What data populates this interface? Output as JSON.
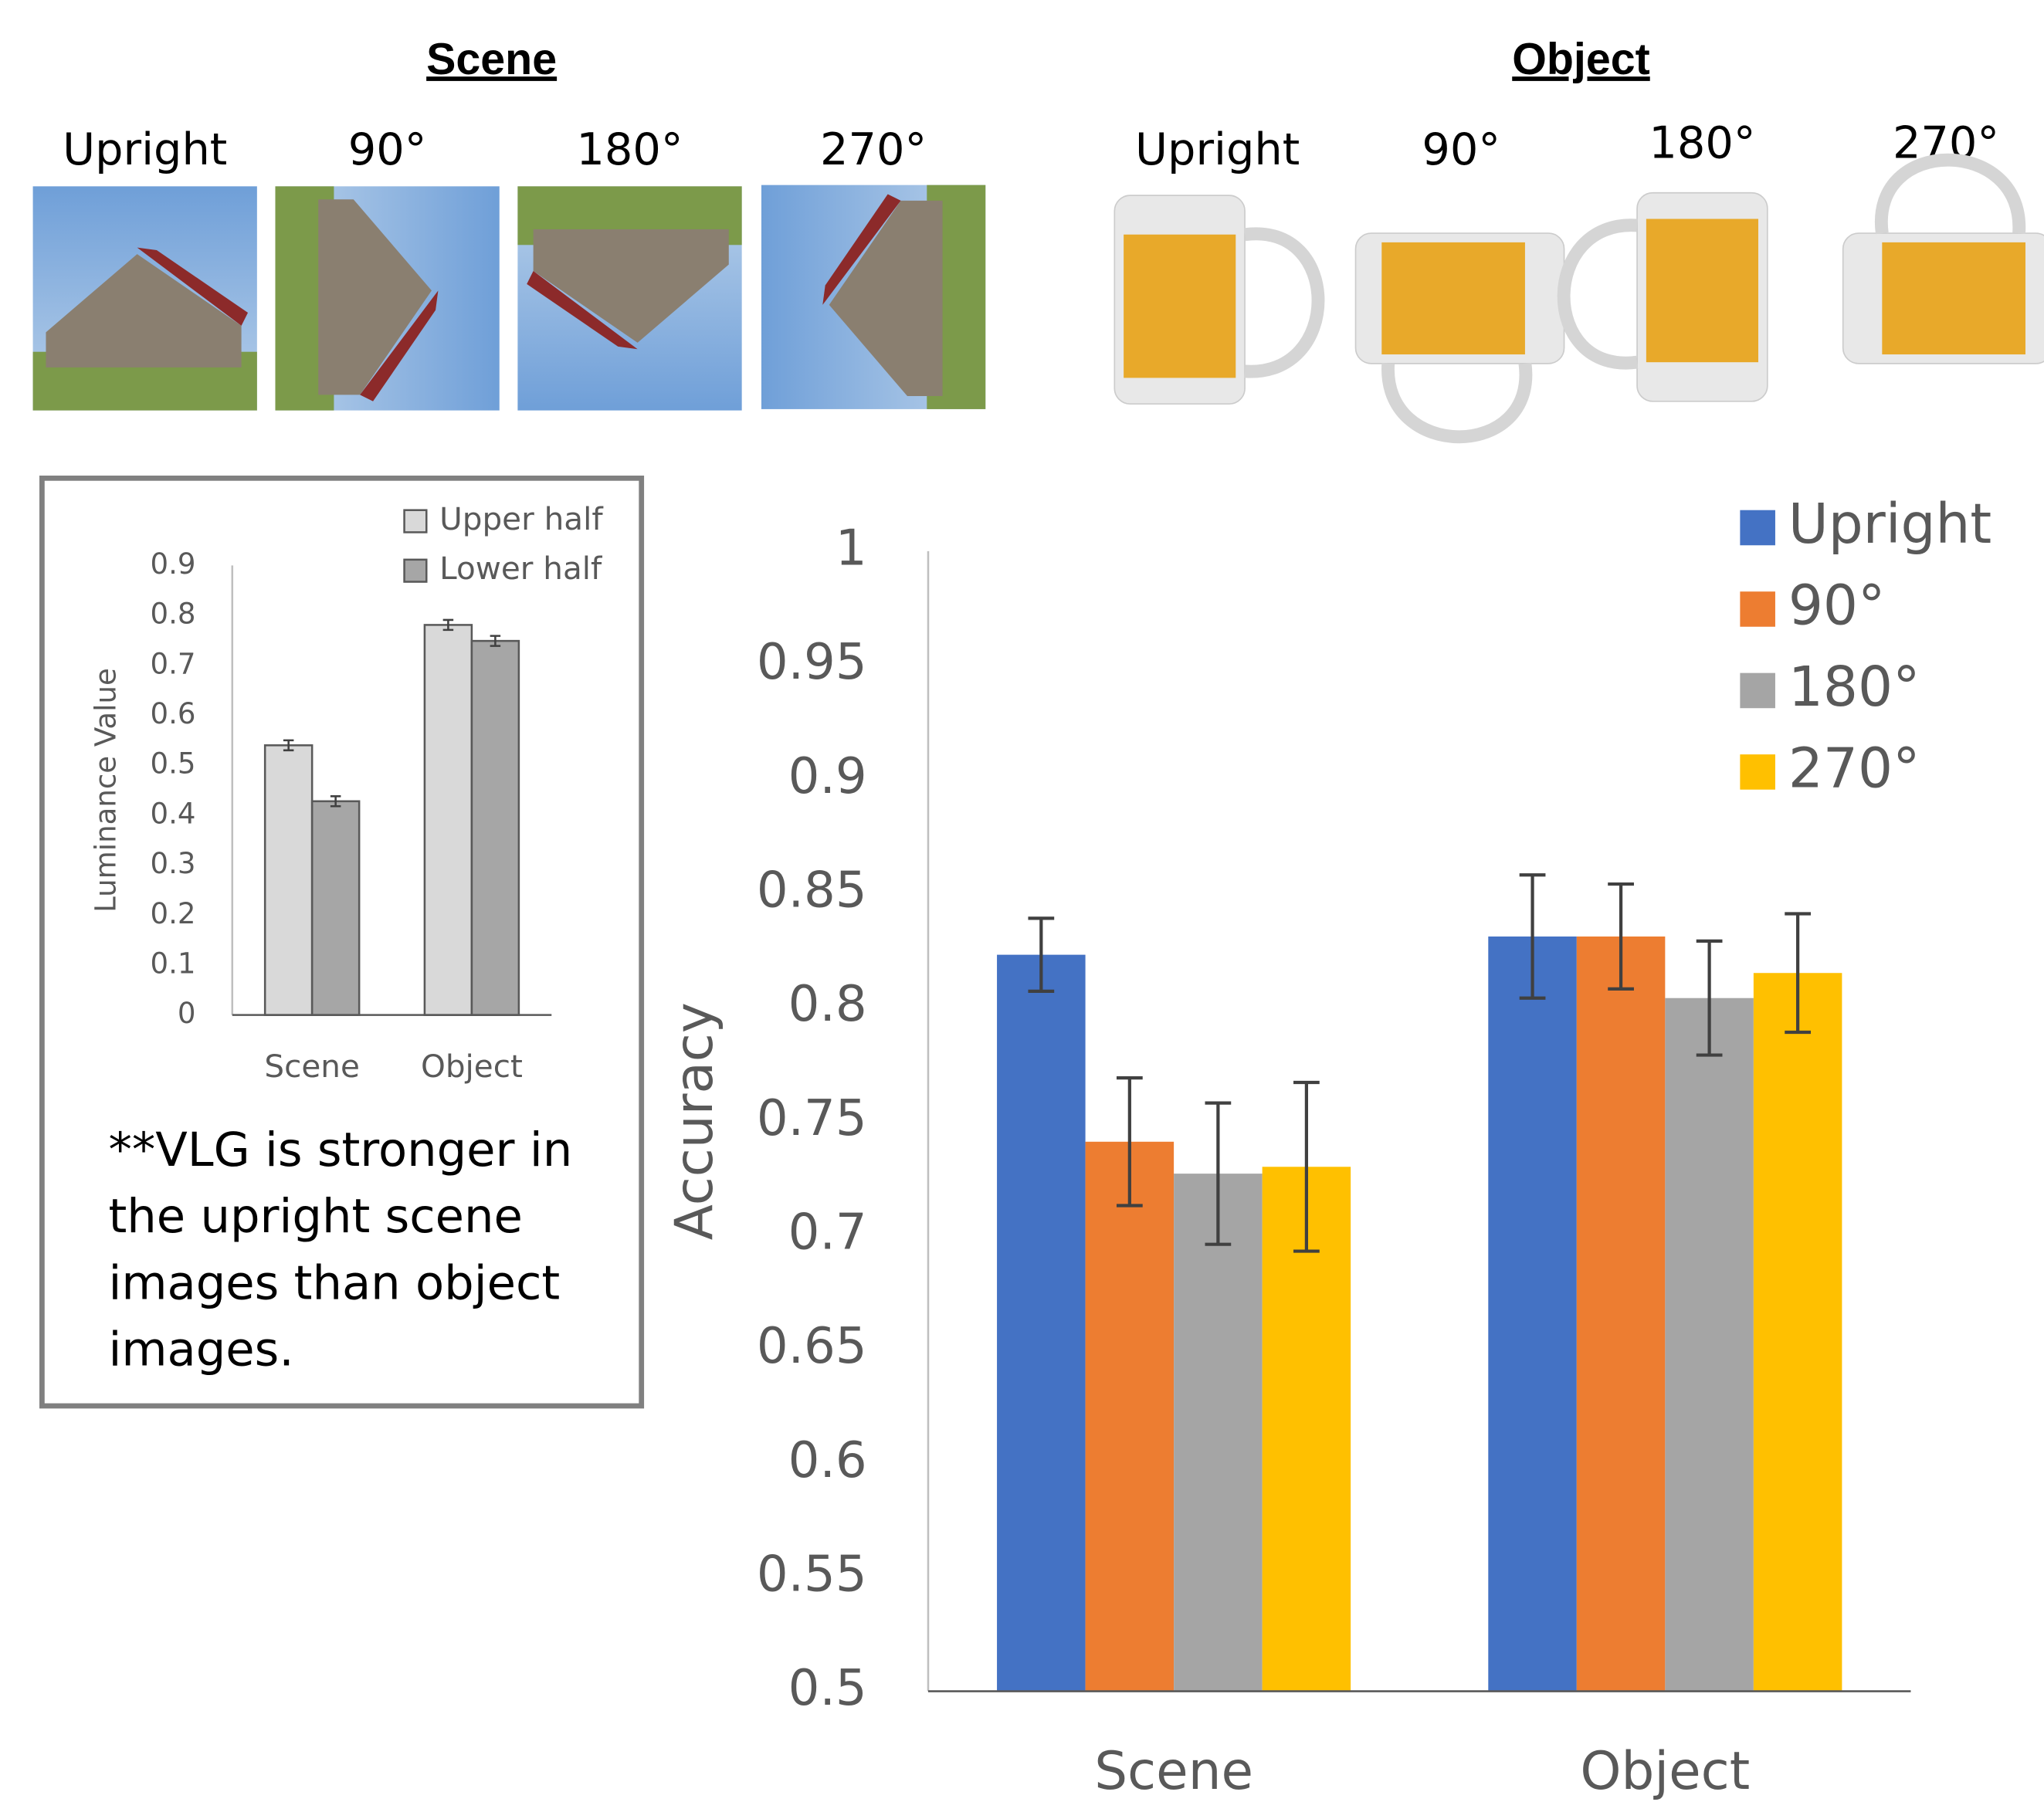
{
  "panels": {
    "scene": {
      "title": "Scene",
      "labels": [
        "Upright",
        "90°",
        "180°",
        "270°"
      ]
    },
    "object": {
      "title": "Object",
      "labels": [
        "Upright",
        "90°",
        "180°",
        "270°"
      ]
    }
  },
  "note": [
    "**VLG is stronger in",
    "the upright scene",
    "images than object",
    "images."
  ],
  "chart_data": [
    {
      "type": "bar",
      "y_label": "Luminance Value",
      "categories": [
        "Scene",
        "Object"
      ],
      "series": [
        {
          "name": "Upper half",
          "color": "#d9d9d9",
          "values": [
            0.54,
            0.781
          ],
          "errors": [
            0.01,
            0.01
          ]
        },
        {
          "name": "Lower half",
          "color": "#a6a6a6",
          "values": [
            0.428,
            0.749
          ],
          "errors": [
            0.01,
            0.01
          ]
        }
      ],
      "ylim": [
        0,
        0.9
      ],
      "yticks": [
        0,
        0.1,
        0.2,
        0.3,
        0.4,
        0.5,
        0.6,
        0.7,
        0.8,
        0.9
      ],
      "legend": "upper right"
    },
    {
      "type": "bar",
      "y_label": "Accuracy",
      "categories": [
        "Scene",
        "Object"
      ],
      "series": [
        {
          "name": "Upright",
          "color": "#4472c4",
          "values": [
            0.823,
            0.831
          ],
          "errors": [
            0.016,
            0.027
          ]
        },
        {
          "name": "90°",
          "color": "#ed7d31",
          "values": [
            0.741,
            0.831
          ],
          "errors": [
            0.028,
            0.023
          ]
        },
        {
          "name": "180°",
          "color": "#a5a5a5",
          "values": [
            0.727,
            0.804
          ],
          "errors": [
            0.031,
            0.025
          ]
        },
        {
          "name": "270°",
          "color": "#ffc000",
          "values": [
            0.73,
            0.815
          ],
          "errors": [
            0.037,
            0.026
          ]
        }
      ],
      "ylim": [
        0.5,
        1
      ],
      "yticks": [
        0.5,
        0.55,
        0.6,
        0.65,
        0.7,
        0.75,
        0.8,
        0.85,
        0.9,
        0.95,
        1
      ],
      "legend": "upper right"
    }
  ]
}
